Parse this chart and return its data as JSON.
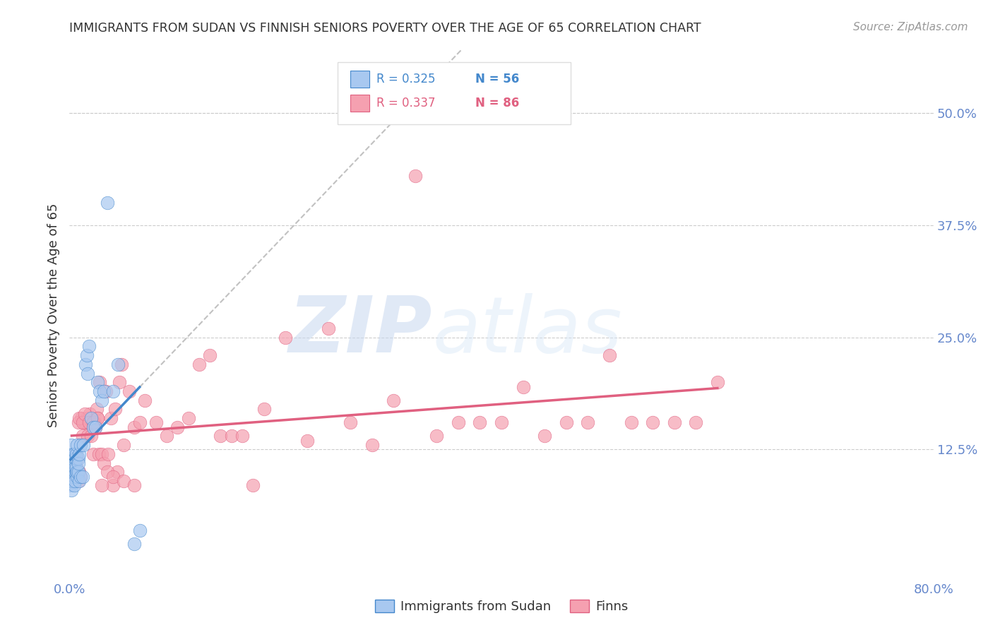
{
  "title": "IMMIGRANTS FROM SUDAN VS FINNISH SENIORS POVERTY OVER THE AGE OF 65 CORRELATION CHART",
  "source": "Source: ZipAtlas.com",
  "ylabel": "Seniors Poverty Over the Age of 65",
  "xlim": [
    0.0,
    0.8
  ],
  "ylim": [
    -0.02,
    0.57
  ],
  "ytick_positions": [
    0.125,
    0.25,
    0.375,
    0.5
  ],
  "ytick_labels": [
    "12.5%",
    "25.0%",
    "37.5%",
    "50.0%"
  ],
  "grid_color": "#cccccc",
  "background_color": "#ffffff",
  "scatter_blue_color": "#a8c8f0",
  "scatter_pink_color": "#f5a0b0",
  "line_blue_color": "#4488cc",
  "line_pink_color": "#e06080",
  "line_gray_color": "#bbbbbb",
  "watermark_color": "#c8d8f0",
  "label_blue": "Immigrants from Sudan",
  "label_pink": "Finns",
  "tick_color": "#6688cc",
  "blue_points_x": [
    0.001,
    0.001,
    0.001,
    0.001,
    0.002,
    0.002,
    0.002,
    0.002,
    0.002,
    0.003,
    0.003,
    0.003,
    0.003,
    0.003,
    0.004,
    0.004,
    0.004,
    0.004,
    0.004,
    0.005,
    0.005,
    0.005,
    0.005,
    0.005,
    0.006,
    0.006,
    0.006,
    0.006,
    0.007,
    0.007,
    0.007,
    0.008,
    0.008,
    0.008,
    0.009,
    0.009,
    0.01,
    0.01,
    0.012,
    0.013,
    0.015,
    0.016,
    0.017,
    0.018,
    0.02,
    0.022,
    0.024,
    0.026,
    0.028,
    0.03,
    0.032,
    0.035,
    0.04,
    0.045,
    0.06,
    0.065
  ],
  "blue_points_y": [
    0.095,
    0.105,
    0.115,
    0.085,
    0.08,
    0.09,
    0.1,
    0.11,
    0.13,
    0.09,
    0.1,
    0.11,
    0.12,
    0.095,
    0.1,
    0.11,
    0.12,
    0.095,
    0.085,
    0.1,
    0.11,
    0.115,
    0.09,
    0.105,
    0.1,
    0.105,
    0.115,
    0.12,
    0.095,
    0.1,
    0.13,
    0.1,
    0.115,
    0.11,
    0.09,
    0.12,
    0.095,
    0.13,
    0.095,
    0.13,
    0.22,
    0.23,
    0.21,
    0.24,
    0.16,
    0.15,
    0.15,
    0.2,
    0.19,
    0.18,
    0.19,
    0.4,
    0.19,
    0.22,
    0.02,
    0.035
  ],
  "pink_points_x": [
    0.002,
    0.003,
    0.004,
    0.005,
    0.005,
    0.006,
    0.007,
    0.008,
    0.009,
    0.01,
    0.011,
    0.012,
    0.013,
    0.014,
    0.015,
    0.016,
    0.017,
    0.018,
    0.019,
    0.02,
    0.021,
    0.022,
    0.023,
    0.024,
    0.025,
    0.026,
    0.027,
    0.028,
    0.03,
    0.032,
    0.034,
    0.036,
    0.038,
    0.04,
    0.042,
    0.044,
    0.046,
    0.048,
    0.05,
    0.055,
    0.06,
    0.065,
    0.07,
    0.08,
    0.09,
    0.1,
    0.11,
    0.12,
    0.13,
    0.14,
    0.15,
    0.16,
    0.17,
    0.18,
    0.2,
    0.22,
    0.24,
    0.26,
    0.28,
    0.3,
    0.32,
    0.34,
    0.36,
    0.38,
    0.4,
    0.42,
    0.44,
    0.46,
    0.48,
    0.5,
    0.52,
    0.54,
    0.56,
    0.58,
    0.6,
    0.008,
    0.009,
    0.012,
    0.014,
    0.018,
    0.022,
    0.026,
    0.03,
    0.035,
    0.04,
    0.05,
    0.06
  ],
  "pink_points_y": [
    0.1,
    0.09,
    0.115,
    0.1,
    0.12,
    0.105,
    0.115,
    0.09,
    0.1,
    0.095,
    0.16,
    0.14,
    0.155,
    0.155,
    0.155,
    0.16,
    0.14,
    0.16,
    0.165,
    0.14,
    0.155,
    0.12,
    0.155,
    0.15,
    0.17,
    0.16,
    0.12,
    0.2,
    0.12,
    0.11,
    0.19,
    0.12,
    0.16,
    0.085,
    0.17,
    0.1,
    0.2,
    0.22,
    0.13,
    0.19,
    0.15,
    0.155,
    0.18,
    0.155,
    0.14,
    0.15,
    0.16,
    0.22,
    0.23,
    0.14,
    0.14,
    0.14,
    0.085,
    0.17,
    0.25,
    0.135,
    0.26,
    0.155,
    0.13,
    0.18,
    0.43,
    0.14,
    0.155,
    0.155,
    0.155,
    0.195,
    0.14,
    0.155,
    0.155,
    0.23,
    0.155,
    0.155,
    0.155,
    0.155,
    0.2,
    0.155,
    0.16,
    0.155,
    0.165,
    0.155,
    0.155,
    0.16,
    0.085,
    0.1,
    0.095,
    0.09,
    0.085
  ]
}
